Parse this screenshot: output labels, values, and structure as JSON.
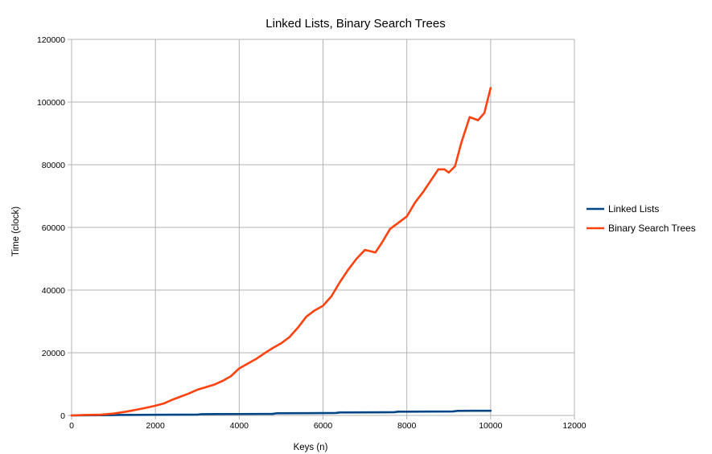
{
  "chart_data": {
    "type": "line",
    "title": "Linked Lists, Binary Search Trees",
    "xlabel": "Keys (n)",
    "ylabel": "Time (clock)",
    "xlim": [
      0,
      12000
    ],
    "ylim": [
      0,
      120000
    ],
    "x_ticks": [
      0,
      2000,
      4000,
      6000,
      8000,
      10000,
      12000
    ],
    "y_ticks": [
      0,
      20000,
      40000,
      60000,
      80000,
      100000,
      120000
    ],
    "grid": true,
    "legend_position": "right",
    "series": [
      {
        "name": "Linked Lists",
        "color": "#004586",
        "points": [
          [
            0,
            0
          ],
          [
            1000,
            100
          ],
          [
            1000,
            150
          ],
          [
            1500,
            180
          ],
          [
            2000,
            220
          ],
          [
            2500,
            240
          ],
          [
            3000,
            260
          ],
          [
            3100,
            400
          ],
          [
            3500,
            420
          ],
          [
            4000,
            450
          ],
          [
            4500,
            480
          ],
          [
            4800,
            500
          ],
          [
            4900,
            700
          ],
          [
            5500,
            720
          ],
          [
            6000,
            750
          ],
          [
            6300,
            780
          ],
          [
            6400,
            950
          ],
          [
            7000,
            980
          ],
          [
            7500,
            1000
          ],
          [
            7700,
            1050
          ],
          [
            7800,
            1200
          ],
          [
            8500,
            1230
          ],
          [
            9100,
            1260
          ],
          [
            9200,
            1450
          ],
          [
            9600,
            1480
          ],
          [
            10000,
            1500
          ]
        ]
      },
      {
        "name": "Binary Search Trees",
        "color": "#ff420e",
        "points": [
          [
            0,
            0
          ],
          [
            300,
            150
          ],
          [
            700,
            250
          ],
          [
            1000,
            600
          ],
          [
            1300,
            1200
          ],
          [
            1500,
            1700
          ],
          [
            1800,
            2500
          ],
          [
            2000,
            3100
          ],
          [
            2200,
            3800
          ],
          [
            2400,
            5000
          ],
          [
            2600,
            6000
          ],
          [
            2800,
            7000
          ],
          [
            3000,
            8200
          ],
          [
            3200,
            9000
          ],
          [
            3400,
            9800
          ],
          [
            3600,
            11000
          ],
          [
            3800,
            12500
          ],
          [
            4000,
            15000
          ],
          [
            4200,
            16500
          ],
          [
            4400,
            18000
          ],
          [
            4600,
            19800
          ],
          [
            4800,
            21500
          ],
          [
            5000,
            23000
          ],
          [
            5200,
            25000
          ],
          [
            5400,
            28000
          ],
          [
            5600,
            31500
          ],
          [
            5800,
            33500
          ],
          [
            6000,
            35000
          ],
          [
            6200,
            38000
          ],
          [
            6400,
            42500
          ],
          [
            6600,
            46500
          ],
          [
            6800,
            50000
          ],
          [
            7000,
            52800
          ],
          [
            7100,
            52500
          ],
          [
            7250,
            52000
          ],
          [
            7400,
            55000
          ],
          [
            7600,
            59500
          ],
          [
            7800,
            61500
          ],
          [
            8000,
            63500
          ],
          [
            8200,
            68000
          ],
          [
            8400,
            71500
          ],
          [
            8600,
            75500
          ],
          [
            8750,
            78500
          ],
          [
            8900,
            78500
          ],
          [
            9000,
            77500
          ],
          [
            9150,
            79500
          ],
          [
            9300,
            87000
          ],
          [
            9500,
            95200
          ],
          [
            9700,
            94200
          ],
          [
            9850,
            96500
          ],
          [
            10000,
            104500
          ]
        ]
      }
    ]
  }
}
